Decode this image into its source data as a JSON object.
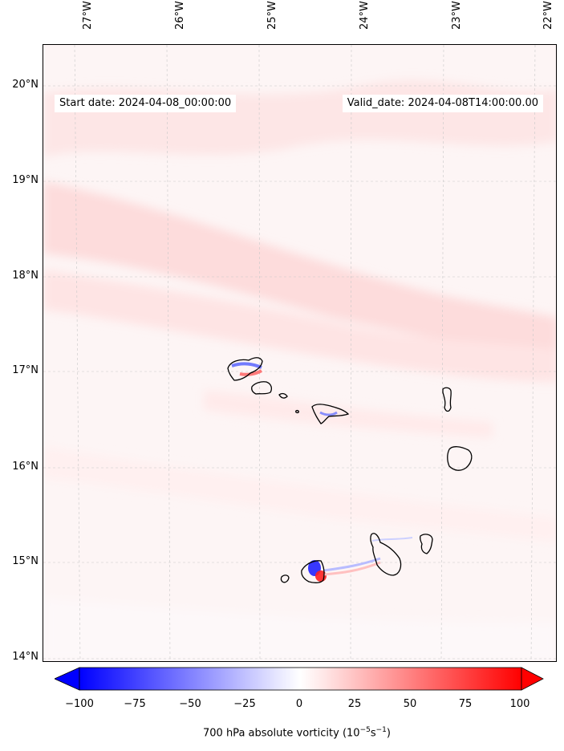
{
  "map": {
    "start_date": "Start date: 2024-04-08_00:00:00",
    "valid_date": "Valid_date: 2024-04-08T14:00:00.00",
    "lon_labels": [
      "27°W",
      "26°W",
      "25°W",
      "24°W",
      "23°W",
      "22°W"
    ],
    "lat_labels": [
      "20°N",
      "19°N",
      "18°N",
      "17°N",
      "16°N",
      "15°N",
      "14°N"
    ]
  },
  "colorbar": {
    "ticks": [
      "−100",
      "−75",
      "−50",
      "−25",
      "0",
      "25",
      "50",
      "75",
      "100"
    ],
    "label_text": "700 hPa absolute vorticity (10",
    "label_exp1": "−5",
    "label_mid": "s",
    "label_exp2": "−1",
    "label_end": ")",
    "min_color": "#0000ff",
    "mid_color": "#ffffff",
    "max_color": "#ff0000"
  }
}
